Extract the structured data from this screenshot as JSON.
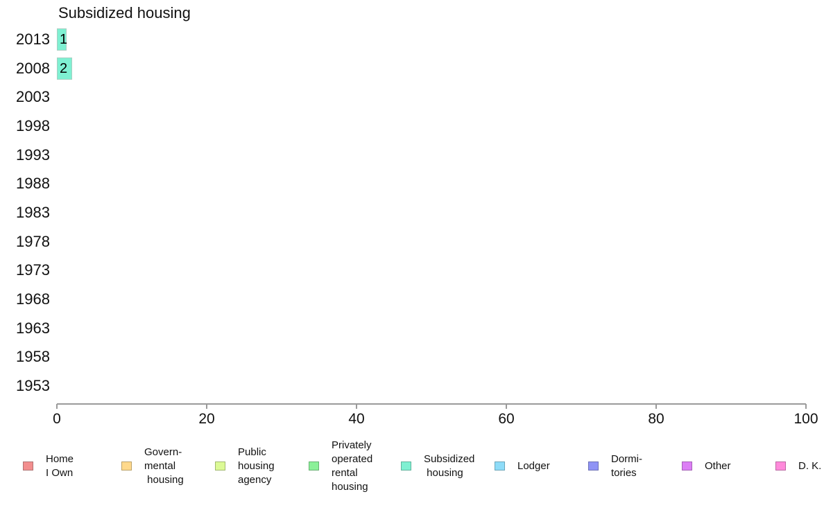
{
  "title": "Subsidized housing",
  "chart_data": {
    "type": "bar",
    "orientation": "horizontal",
    "title": "Subsidized housing",
    "categories": [
      "2013",
      "2008",
      "2003",
      "1998",
      "1993",
      "1988",
      "1983",
      "1978",
      "1973",
      "1968",
      "1963",
      "1958",
      "1953"
    ],
    "values": [
      1,
      2,
      null,
      null,
      null,
      null,
      null,
      null,
      null,
      null,
      null,
      null,
      null
    ],
    "xlim": [
      0,
      100
    ],
    "x_ticks": [
      0,
      20,
      40,
      60,
      80,
      100
    ],
    "grid": "off",
    "legend_position": "bottom",
    "bar_color": "#7FF0D2",
    "bar_border_color": "#A6CFC2",
    "axis_color": "#9a9a9a"
  },
  "legend": {
    "items": [
      {
        "label": "Home\nI Own",
        "color": "#F28E8E",
        "border": "#B07272"
      },
      {
        "label": "Govern-\nmental\n housing",
        "color": "#FFD98C",
        "border": "#BCA268"
      },
      {
        "label": "Public\nhousing\nagency",
        "color": "#DCFA96",
        "border": "#A2B96F"
      },
      {
        "label": "Privately\noperated\nrental\nhousing",
        "color": "#8BF098",
        "border": "#68B273"
      },
      {
        "label": "Subsidized\n housing",
        "color": "#7FF0D2",
        "border": "#60B39C"
      },
      {
        "label": "Lodger",
        "color": "#8EDCF8",
        "border": "#6BA6BA"
      },
      {
        "label": "Dormi-\ntories",
        "color": "#8F93F5",
        "border": "#6C70B8"
      },
      {
        "label": "Other",
        "color": "#DC7EF5",
        "border": "#A560B8"
      },
      {
        "label": "D. K.",
        "color": "#FF8ADB",
        "border": "#BC68A3"
      }
    ]
  }
}
